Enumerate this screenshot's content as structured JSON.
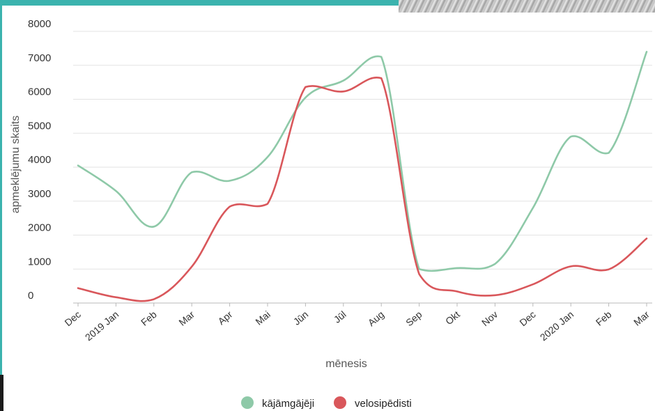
{
  "colors": {
    "frame_accent": "#3bb3ae",
    "gridline": "#e3e3e3",
    "axis_line": "#b9b9b9"
  },
  "chart_data": {
    "type": "line",
    "title": "",
    "xlabel": "mēnesis",
    "ylabel": "apmeklējumu skaits",
    "ylim": [
      0,
      8000
    ],
    "yticks": [
      "0",
      "1000",
      "2000",
      "3000",
      "4000",
      "5000",
      "6000",
      "7000",
      "8000"
    ],
    "categories": [
      "Dec",
      "2019 Jan",
      "Feb",
      "Mar",
      "Apr",
      "Mai",
      "Jūn",
      "Jūl",
      "Aug",
      "Sep",
      "Okt",
      "Nov",
      "Dec",
      "2020 Jan",
      "Feb",
      "Mar"
    ],
    "grid": true,
    "legend_position": "bottom-center",
    "series": [
      {
        "name": "kājāmgājēji",
        "color": "#8ec9a8",
        "values": [
          4050,
          3300,
          2250,
          3850,
          3600,
          4300,
          6050,
          6550,
          7250,
          1000,
          1030,
          1150,
          2800,
          4900,
          4420,
          7400
        ]
      },
      {
        "name": "velosipēdisti",
        "color": "#d9575b",
        "values": [
          440,
          170,
          110,
          1070,
          2840,
          2920,
          6360,
          6230,
          6620,
          850,
          340,
          230,
          550,
          1080,
          990,
          1900
        ]
      }
    ]
  }
}
